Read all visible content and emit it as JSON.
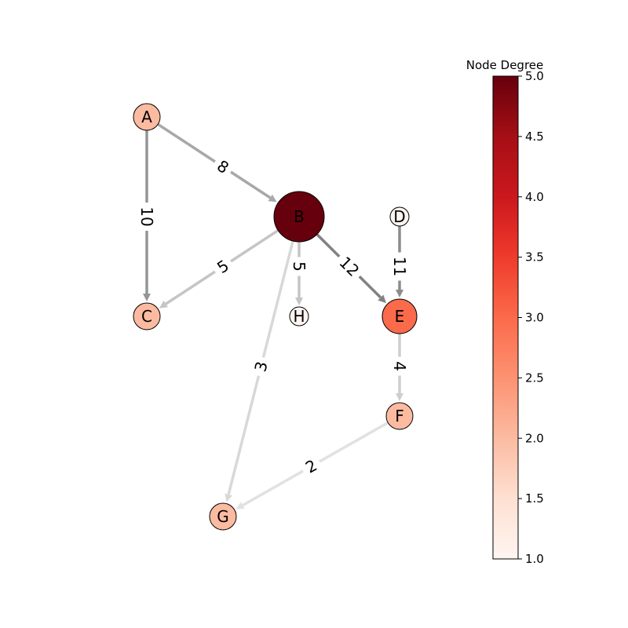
{
  "graph": {
    "nodes": [
      {
        "id": "A",
        "label": "A",
        "degree": 2
      },
      {
        "id": "B",
        "label": "B",
        "degree": 5
      },
      {
        "id": "C",
        "label": "C",
        "degree": 2
      },
      {
        "id": "D",
        "label": "D",
        "degree": 1
      },
      {
        "id": "E",
        "label": "E",
        "degree": 3
      },
      {
        "id": "F",
        "label": "F",
        "degree": 2
      },
      {
        "id": "G",
        "label": "G",
        "degree": 2
      },
      {
        "id": "H",
        "label": "H",
        "degree": 1
      }
    ],
    "edges": [
      {
        "source": "A",
        "target": "B",
        "weight": "8"
      },
      {
        "source": "A",
        "target": "C",
        "weight": "10"
      },
      {
        "source": "B",
        "target": "C",
        "weight": "5"
      },
      {
        "source": "B",
        "target": "H",
        "weight": "5"
      },
      {
        "source": "B",
        "target": "E",
        "weight": "12"
      },
      {
        "source": "B",
        "target": "G",
        "weight": "3"
      },
      {
        "source": "D",
        "target": "E",
        "weight": "11"
      },
      {
        "source": "E",
        "target": "F",
        "weight": "4"
      },
      {
        "source": "F",
        "target": "G",
        "weight": "2"
      }
    ]
  },
  "colorbar": {
    "title": "Node Degree",
    "min": 1.0,
    "max": 5.0,
    "ticks": [
      "1.0",
      "1.5",
      "2.0",
      "2.5",
      "3.0",
      "3.5",
      "4.0",
      "4.5",
      "5.0"
    ],
    "colormap": "Reds",
    "colors": [
      "#fff5f0",
      "#fee0d2",
      "#fcbba1",
      "#fc9272",
      "#fb6a4a",
      "#ef3b2c",
      "#cb181d",
      "#a50f15",
      "#67000d"
    ]
  }
}
